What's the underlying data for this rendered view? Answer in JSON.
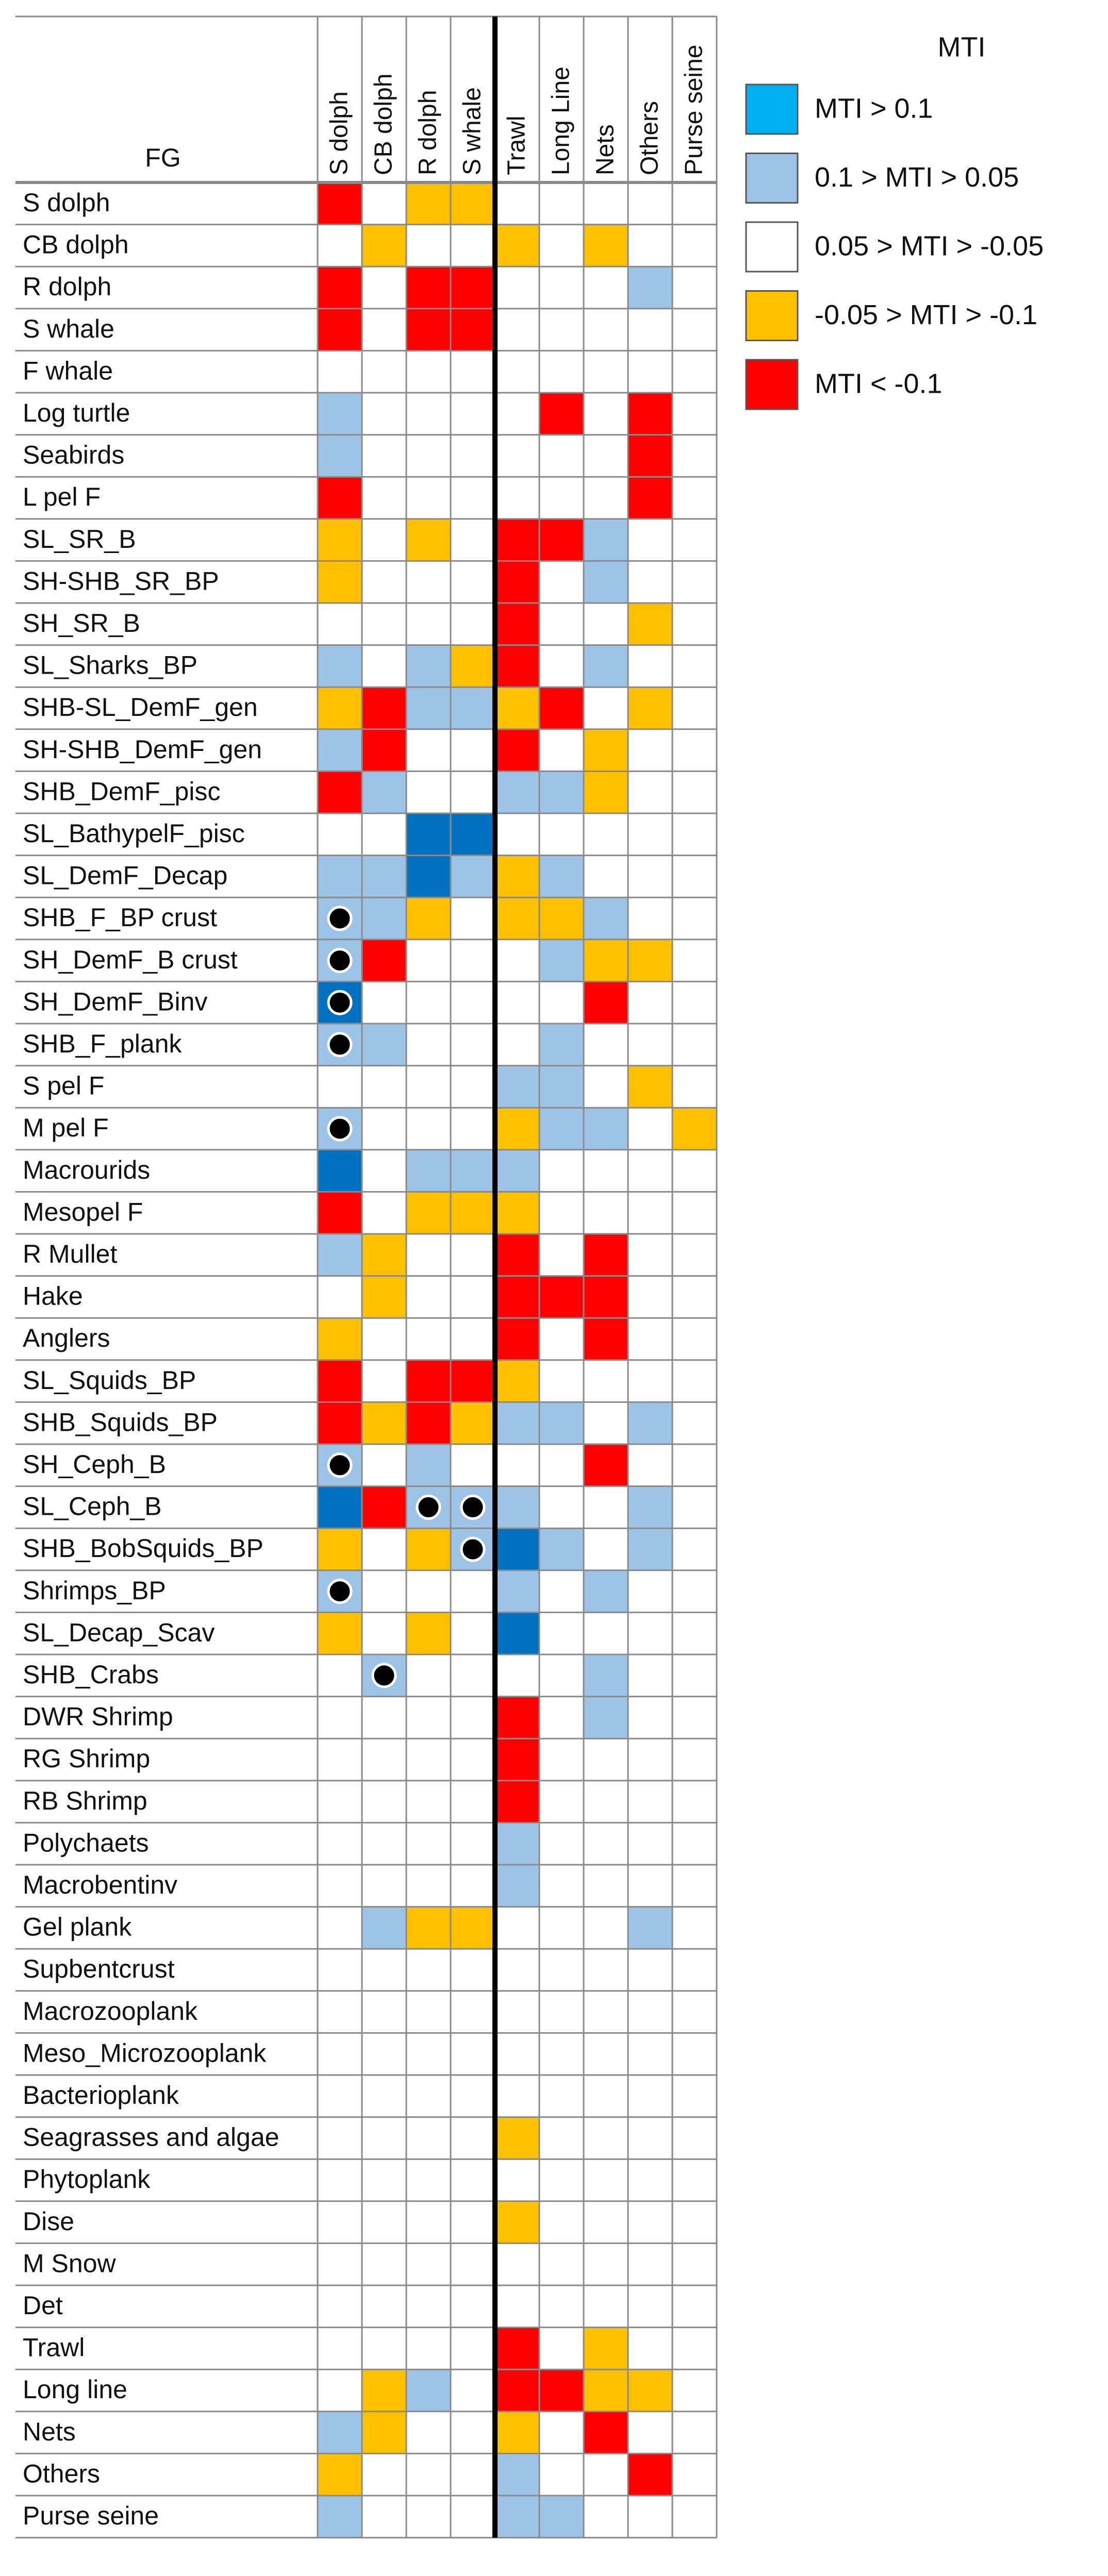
{
  "header": {
    "fg_label": "FG",
    "columns": [
      "S dolph",
      "CB dolph",
      "R dolph",
      "S whale",
      "Trawl",
      "Long Line",
      "Nets",
      "Others",
      "Purse seine"
    ]
  },
  "legend": {
    "title": "MTI",
    "items": [
      {
        "label": "MTI > 0.1",
        "color": "#00b0f0",
        "cell_color": "#0070c0"
      },
      {
        "label": "0.1 > MTI > 0.05",
        "color": "#9dc3e6",
        "cell_color": "#9dc3e6"
      },
      {
        "label": "0.05 > MTI > -0.05",
        "color": "#ffffff",
        "cell_color": "#ffffff"
      },
      {
        "label": "-0.05 > MTI > -0.1",
        "color": "#ffc000",
        "cell_color": "#ffc000"
      },
      {
        "label": "MTI < -0.1",
        "color": "#ff0000",
        "cell_color": "#ff0000"
      }
    ]
  },
  "rows": [
    {
      "label": "S dolph",
      "cells": [
        4,
        2,
        3,
        3,
        2,
        2,
        2,
        2,
        2
      ]
    },
    {
      "label": "CB dolph",
      "cells": [
        2,
        3,
        2,
        2,
        3,
        2,
        3,
        2,
        2
      ]
    },
    {
      "label": "R dolph",
      "cells": [
        4,
        2,
        4,
        4,
        2,
        2,
        2,
        1,
        2
      ]
    },
    {
      "label": "S whale",
      "cells": [
        4,
        2,
        4,
        4,
        2,
        2,
        2,
        2,
        2
      ]
    },
    {
      "label": "F whale",
      "cells": [
        2,
        2,
        2,
        2,
        2,
        2,
        2,
        2,
        2
      ]
    },
    {
      "label": "Log turtle",
      "cells": [
        1,
        2,
        2,
        2,
        2,
        4,
        2,
        4,
        2
      ]
    },
    {
      "label": "Seabirds",
      "cells": [
        1,
        2,
        2,
        2,
        2,
        2,
        2,
        4,
        2
      ]
    },
    {
      "label": "L pel F",
      "cells": [
        4,
        2,
        2,
        2,
        2,
        2,
        2,
        4,
        2
      ]
    },
    {
      "label": "SL_SR_B",
      "cells": [
        3,
        2,
        3,
        2,
        4,
        4,
        1,
        2,
        2
      ]
    },
    {
      "label": "SH-SHB_SR_BP",
      "cells": [
        3,
        2,
        2,
        2,
        4,
        2,
        1,
        2,
        2
      ]
    },
    {
      "label": "SH_SR_B",
      "cells": [
        2,
        2,
        2,
        2,
        4,
        2,
        2,
        3,
        2
      ]
    },
    {
      "label": "SL_Sharks_BP",
      "cells": [
        1,
        2,
        1,
        3,
        4,
        2,
        1,
        2,
        2
      ]
    },
    {
      "label": "SHB-SL_DemF_gen",
      "cells": [
        3,
        4,
        1,
        1,
        3,
        4,
        2,
        3,
        2
      ]
    },
    {
      "label": "SH-SHB_DemF_gen",
      "cells": [
        1,
        4,
        2,
        2,
        4,
        2,
        3,
        2,
        2
      ]
    },
    {
      "label": "SHB_DemF_pisc",
      "cells": [
        4,
        1,
        2,
        2,
        1,
        1,
        3,
        2,
        2
      ]
    },
    {
      "label": "SL_BathypelF_pisc",
      "cells": [
        2,
        2,
        0,
        0,
        2,
        2,
        2,
        2,
        2
      ]
    },
    {
      "label": "SL_DemF_Decap",
      "cells": [
        1,
        1,
        0,
        1,
        3,
        1,
        2,
        2,
        2
      ]
    },
    {
      "label": "SHB_F_BP crust",
      "cells": [
        1,
        1,
        3,
        2,
        3,
        3,
        1,
        2,
        2
      ],
      "dots": [
        0
      ]
    },
    {
      "label": "SH_DemF_B crust",
      "cells": [
        1,
        4,
        2,
        2,
        2,
        1,
        3,
        3,
        2
      ],
      "dots": [
        0
      ]
    },
    {
      "label": "SH_DemF_Binv",
      "cells": [
        0,
        2,
        2,
        2,
        2,
        2,
        4,
        2,
        2
      ],
      "dots": [
        0
      ]
    },
    {
      "label": "SHB_F_plank",
      "cells": [
        1,
        1,
        2,
        2,
        2,
        1,
        2,
        2,
        2
      ],
      "dots": [
        0
      ]
    },
    {
      "label": "S pel F",
      "cells": [
        2,
        2,
        2,
        2,
        1,
        1,
        2,
        3,
        2
      ]
    },
    {
      "label": "M pel F",
      "cells": [
        1,
        2,
        2,
        2,
        3,
        1,
        1,
        2,
        3
      ],
      "dots": [
        0
      ]
    },
    {
      "label": "Macrourids",
      "cells": [
        0,
        2,
        1,
        1,
        1,
        2,
        2,
        2,
        2
      ]
    },
    {
      "label": "Mesopel F",
      "cells": [
        4,
        2,
        3,
        3,
        3,
        2,
        2,
        2,
        2
      ]
    },
    {
      "label": "R Mullet",
      "cells": [
        1,
        3,
        2,
        2,
        4,
        2,
        4,
        2,
        2
      ]
    },
    {
      "label": "Hake",
      "cells": [
        2,
        3,
        2,
        2,
        4,
        4,
        4,
        2,
        2
      ]
    },
    {
      "label": "Anglers",
      "cells": [
        3,
        2,
        2,
        2,
        4,
        2,
        4,
        2,
        2
      ]
    },
    {
      "label": "SL_Squids_BP",
      "cells": [
        4,
        2,
        4,
        4,
        3,
        2,
        2,
        2,
        2
      ]
    },
    {
      "label": "SHB_Squids_BP",
      "cells": [
        4,
        3,
        4,
        3,
        1,
        1,
        2,
        1,
        2
      ]
    },
    {
      "label": "SH_Ceph_B",
      "cells": [
        1,
        2,
        1,
        2,
        2,
        2,
        4,
        2,
        2
      ],
      "dots": [
        0
      ]
    },
    {
      "label": "SL_Ceph_B",
      "cells": [
        0,
        4,
        1,
        1,
        1,
        2,
        2,
        1,
        2
      ],
      "dots": [
        2,
        3
      ]
    },
    {
      "label": "SHB_BobSquids_BP",
      "cells": [
        3,
        2,
        3,
        1,
        0,
        1,
        2,
        1,
        2
      ],
      "dots": [
        3
      ]
    },
    {
      "label": "Shrimps_BP",
      "cells": [
        1,
        2,
        2,
        2,
        1,
        2,
        1,
        2,
        2
      ],
      "dots": [
        0
      ]
    },
    {
      "label": "SL_Decap_Scav",
      "cells": [
        3,
        2,
        3,
        2,
        0,
        2,
        2,
        2,
        2
      ]
    },
    {
      "label": "SHB_Crabs",
      "cells": [
        2,
        1,
        2,
        2,
        2,
        2,
        1,
        2,
        2
      ],
      "dots": [
        1
      ]
    },
    {
      "label": "DWR Shrimp",
      "cells": [
        2,
        2,
        2,
        2,
        4,
        2,
        1,
        2,
        2
      ]
    },
    {
      "label": "RG Shrimp",
      "cells": [
        2,
        2,
        2,
        2,
        4,
        2,
        2,
        2,
        2
      ]
    },
    {
      "label": "RB Shrimp",
      "cells": [
        2,
        2,
        2,
        2,
        4,
        2,
        2,
        2,
        2
      ]
    },
    {
      "label": "Polychaets",
      "cells": [
        2,
        2,
        2,
        2,
        1,
        2,
        2,
        2,
        2
      ]
    },
    {
      "label": "Macrobentinv",
      "cells": [
        2,
        2,
        2,
        2,
        1,
        2,
        2,
        2,
        2
      ]
    },
    {
      "label": "Gel plank",
      "cells": [
        2,
        1,
        3,
        3,
        2,
        2,
        2,
        1,
        2
      ]
    },
    {
      "label": "Supbentcrust",
      "cells": [
        2,
        2,
        2,
        2,
        2,
        2,
        2,
        2,
        2
      ]
    },
    {
      "label": "Macrozooplank",
      "cells": [
        2,
        2,
        2,
        2,
        2,
        2,
        2,
        2,
        2
      ]
    },
    {
      "label": "Meso_Microzooplank",
      "cells": [
        2,
        2,
        2,
        2,
        2,
        2,
        2,
        2,
        2
      ]
    },
    {
      "label": "Bacterioplank",
      "cells": [
        2,
        2,
        2,
        2,
        2,
        2,
        2,
        2,
        2
      ]
    },
    {
      "label": "Seagrasses and algae",
      "cells": [
        2,
        2,
        2,
        2,
        3,
        2,
        2,
        2,
        2
      ]
    },
    {
      "label": "Phytoplank",
      "cells": [
        2,
        2,
        2,
        2,
        2,
        2,
        2,
        2,
        2
      ]
    },
    {
      "label": "Dise",
      "cells": [
        2,
        2,
        2,
        2,
        3,
        2,
        2,
        2,
        2
      ]
    },
    {
      "label": "M Snow",
      "cells": [
        2,
        2,
        2,
        2,
        2,
        2,
        2,
        2,
        2
      ]
    },
    {
      "label": "Det",
      "cells": [
        2,
        2,
        2,
        2,
        2,
        2,
        2,
        2,
        2
      ]
    },
    {
      "label": "Trawl",
      "cells": [
        2,
        2,
        2,
        2,
        4,
        2,
        3,
        2,
        2
      ]
    },
    {
      "label": "Long line",
      "cells": [
        2,
        3,
        1,
        2,
        4,
        4,
        3,
        3,
        2
      ]
    },
    {
      "label": "Nets",
      "cells": [
        1,
        3,
        2,
        2,
        3,
        2,
        4,
        2,
        2
      ]
    },
    {
      "label": "Others",
      "cells": [
        3,
        2,
        2,
        2,
        1,
        2,
        2,
        4,
        2
      ]
    },
    {
      "label": "Purse seine",
      "cells": [
        1,
        2,
        2,
        2,
        1,
        1,
        2,
        2,
        2
      ]
    }
  ]
}
